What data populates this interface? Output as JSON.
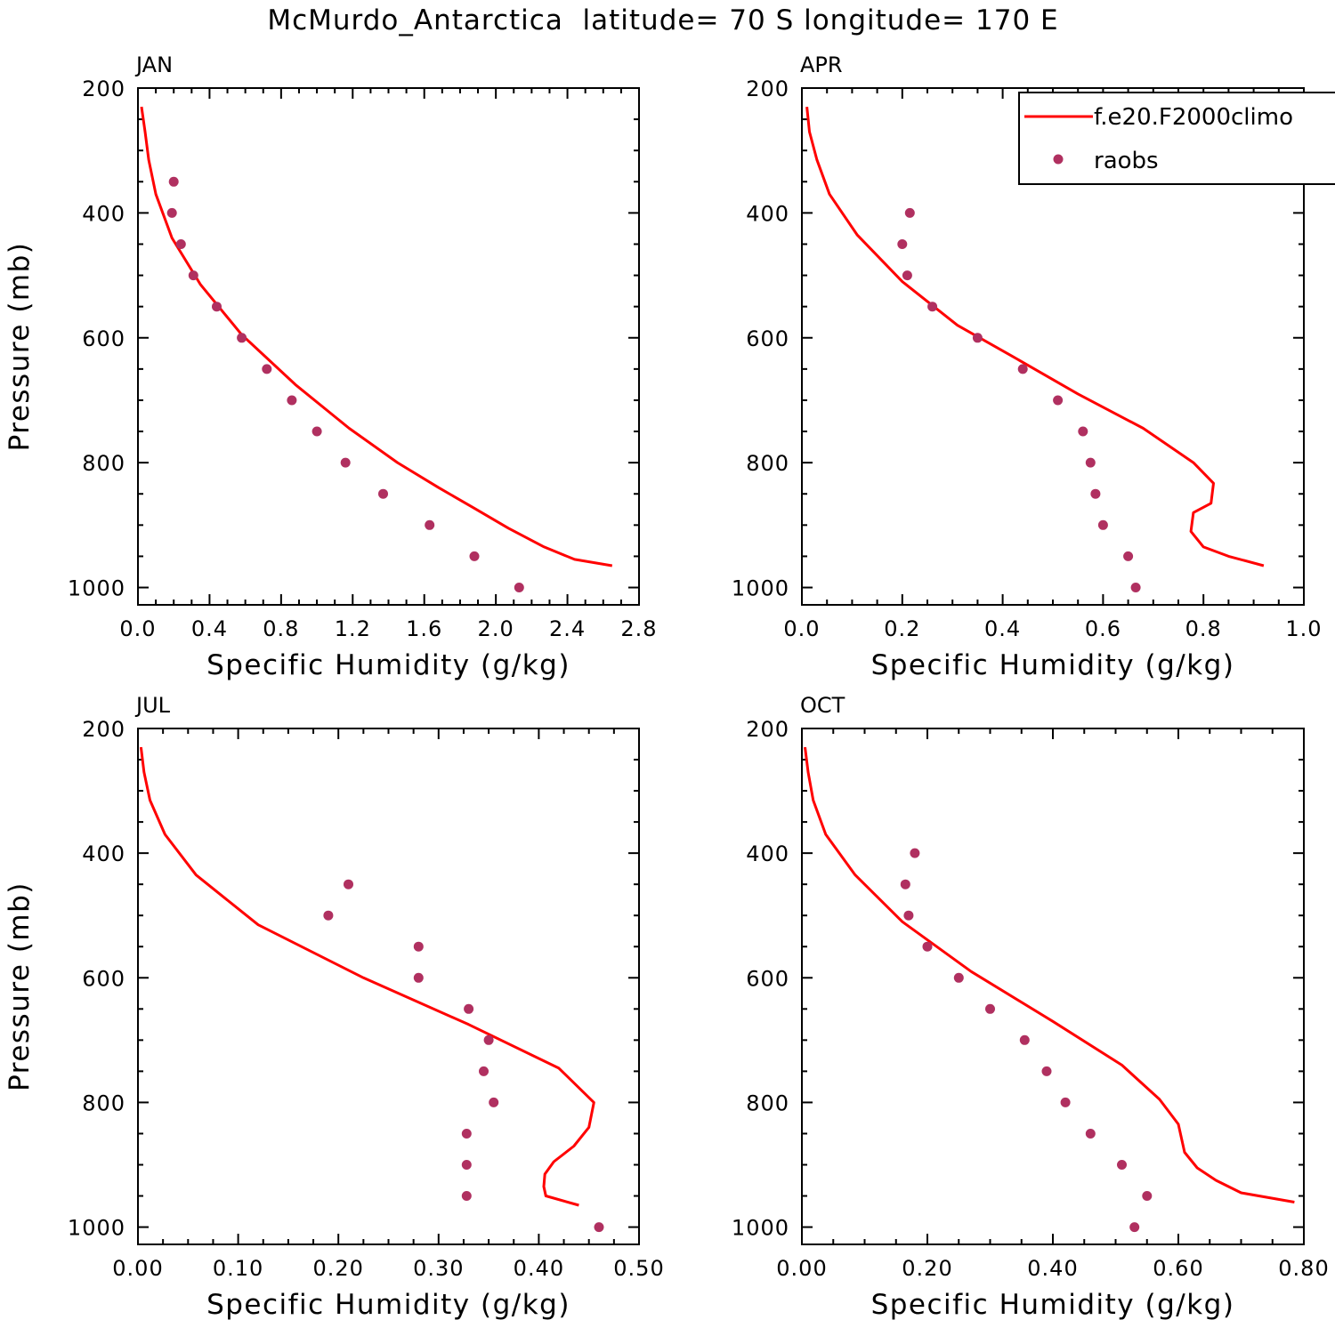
{
  "title": "McMurdo_Antarctica  latitude= 70 S longitude= 170 E",
  "colors": {
    "model": "#ff0000",
    "obs": "#b03060",
    "axis": "#000000"
  },
  "legend": {
    "entries": [
      {
        "label": "f.e20.F2000climo",
        "kind": "line"
      },
      {
        "label": "raobs",
        "kind": "marker"
      }
    ]
  },
  "chart_data": [
    {
      "type": "line",
      "panel": "JAN",
      "title": "JAN",
      "xlabel": "Specific Humidity (g/kg)",
      "ylabel": "Pressure (mb)",
      "xlim": [
        0,
        2.8
      ],
      "ylim": [
        200,
        1000
      ],
      "y_inverted": true,
      "x_ticks": [
        "0.0",
        "0.4",
        "0.8",
        "1.2",
        "1.6",
        "2.0",
        "2.4",
        "2.8"
      ],
      "y_ticks": [
        "200",
        "400",
        "600",
        "800",
        "1000"
      ],
      "series": [
        {
          "name": "f.e20.F2000climo",
          "style": "line",
          "x": [
            0.02,
            0.04,
            0.06,
            0.1,
            0.19,
            0.35,
            0.58,
            0.88,
            1.18,
            1.45,
            1.68,
            1.88,
            2.07,
            2.27,
            2.44,
            2.65
          ],
          "y": [
            230,
            270,
            315,
            370,
            440,
            515,
            595,
            675,
            745,
            800,
            840,
            873,
            905,
            935,
            955,
            965
          ]
        },
        {
          "name": "raobs",
          "style": "markers",
          "x": [
            0.2,
            0.19,
            0.24,
            0.31,
            0.44,
            0.58,
            0.72,
            0.86,
            1.0,
            1.16,
            1.37,
            1.63,
            1.88,
            2.13
          ],
          "y": [
            350,
            400,
            450,
            500,
            550,
            600,
            650,
            700,
            750,
            800,
            850,
            900,
            950,
            1000
          ]
        }
      ]
    },
    {
      "type": "line",
      "panel": "APR",
      "title": "APR",
      "xlabel": "Specific Humidity (g/kg)",
      "ylabel": "Pressure (mb)",
      "xlim": [
        0,
        1.0
      ],
      "ylim": [
        200,
        1000
      ],
      "y_inverted": true,
      "x_ticks": [
        "0.0",
        "0.2",
        "0.4",
        "0.6",
        "0.8",
        "1.0"
      ],
      "y_ticks": [
        "200",
        "400",
        "600",
        "800",
        "1000"
      ],
      "series": [
        {
          "name": "f.e20.F2000climo",
          "style": "line",
          "x": [
            0.01,
            0.015,
            0.03,
            0.055,
            0.11,
            0.2,
            0.31,
            0.42,
            0.55,
            0.68,
            0.78,
            0.82,
            0.815,
            0.78,
            0.775,
            0.8,
            0.85,
            0.92
          ],
          "y": [
            230,
            270,
            315,
            370,
            435,
            510,
            580,
            630,
            690,
            745,
            800,
            833,
            865,
            880,
            910,
            935,
            950,
            965
          ]
        },
        {
          "name": "raobs",
          "style": "markers",
          "x": [
            0.215,
            0.2,
            0.21,
            0.26,
            0.35,
            0.44,
            0.51,
            0.56,
            0.575,
            0.585,
            0.6,
            0.65,
            0.665
          ],
          "y": [
            400,
            450,
            500,
            550,
            600,
            650,
            700,
            750,
            800,
            850,
            900,
            950,
            1000
          ]
        }
      ]
    },
    {
      "type": "line",
      "panel": "JUL",
      "title": "JUL",
      "xlabel": "Specific Humidity (g/kg)",
      "ylabel": "Pressure (mb)",
      "xlim": [
        0,
        0.5
      ],
      "ylim": [
        200,
        1000
      ],
      "y_inverted": true,
      "x_ticks": [
        "0.00",
        "0.10",
        "0.20",
        "0.30",
        "0.40",
        "0.50"
      ],
      "y_ticks": [
        "200",
        "400",
        "600",
        "800",
        "1000"
      ],
      "series": [
        {
          "name": "f.e20.F2000climo",
          "style": "line",
          "x": [
            0.003,
            0.006,
            0.012,
            0.027,
            0.058,
            0.12,
            0.225,
            0.33,
            0.42,
            0.455,
            0.45,
            0.435,
            0.415,
            0.406,
            0.405,
            0.407,
            0.44
          ],
          "y": [
            230,
            270,
            315,
            370,
            435,
            515,
            600,
            675,
            745,
            800,
            840,
            870,
            895,
            915,
            935,
            950,
            965
          ]
        },
        {
          "name": "raobs",
          "style": "markers",
          "x": [
            0.21,
            0.19,
            0.28,
            0.28,
            0.33,
            0.35,
            0.345,
            0.355,
            0.328,
            0.328,
            0.328,
            0.46
          ],
          "y": [
            450,
            500,
            550,
            600,
            650,
            700,
            750,
            800,
            850,
            900,
            950,
            1000
          ]
        }
      ]
    },
    {
      "type": "line",
      "panel": "OCT",
      "title": "OCT",
      "xlabel": "Specific Humidity (g/kg)",
      "ylabel": "Pressure (mb)",
      "xlim": [
        0,
        0.8
      ],
      "ylim": [
        200,
        1000
      ],
      "y_inverted": true,
      "x_ticks": [
        "0.00",
        "0.20",
        "0.40",
        "0.60",
        "0.80"
      ],
      "y_ticks": [
        "200",
        "400",
        "600",
        "800",
        "1000"
      ],
      "series": [
        {
          "name": "f.e20.F2000climo",
          "style": "line",
          "x": [
            0.005,
            0.01,
            0.018,
            0.038,
            0.085,
            0.16,
            0.27,
            0.4,
            0.51,
            0.57,
            0.6,
            0.61,
            0.63,
            0.66,
            0.7,
            0.785
          ],
          "y": [
            230,
            270,
            315,
            370,
            435,
            510,
            590,
            670,
            740,
            795,
            835,
            880,
            905,
            925,
            945,
            960
          ]
        },
        {
          "name": "raobs",
          "style": "markers",
          "x": [
            0.18,
            0.165,
            0.17,
            0.2,
            0.25,
            0.3,
            0.355,
            0.39,
            0.42,
            0.46,
            0.51,
            0.55,
            0.53
          ],
          "y": [
            400,
            450,
            500,
            550,
            600,
            650,
            700,
            750,
            800,
            850,
            900,
            950,
            1000
          ]
        }
      ]
    }
  ]
}
